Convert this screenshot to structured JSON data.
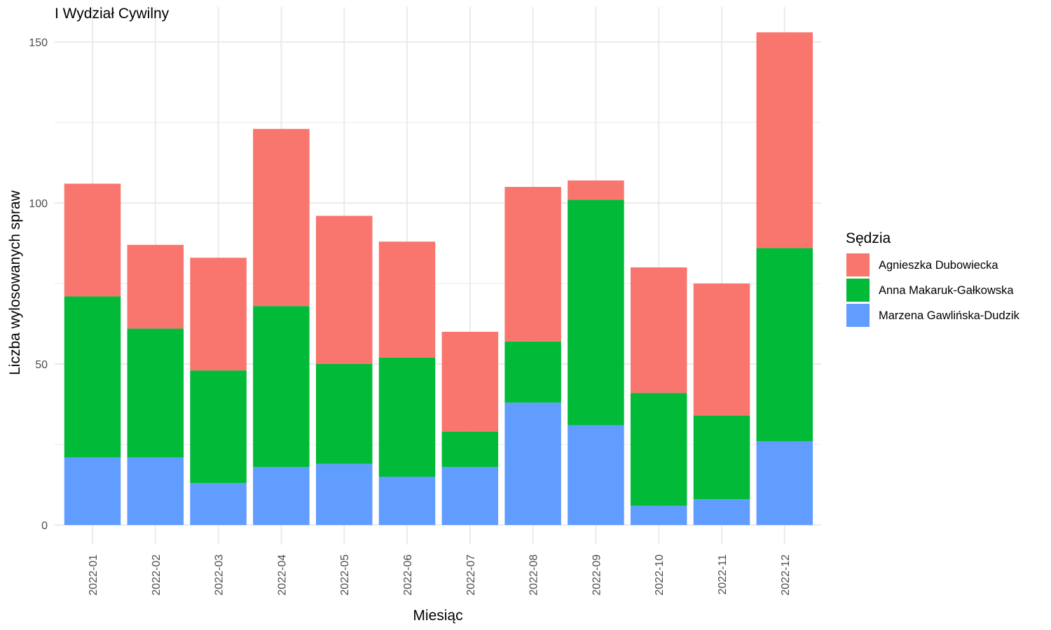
{
  "chart_data": {
    "type": "bar",
    "stacked": true,
    "title": "I Wydział Cywilny",
    "xlabel": "Miesiąc",
    "ylabel": "Liczba wylosowanych spraw",
    "ylim": [
      0,
      160
    ],
    "yticks": [
      0,
      50,
      100,
      150
    ],
    "grid": true,
    "legend_title": "Sędzia",
    "legend_position": "right",
    "categories": [
      "2022-01",
      "2022-02",
      "2022-03",
      "2022-04",
      "2022-05",
      "2022-06",
      "2022-07",
      "2022-08",
      "2022-09",
      "2022-10",
      "2022-11",
      "2022-12"
    ],
    "series": [
      {
        "name": "Marzena Gawlińska-Dudzik",
        "color": "#619CFF",
        "values": [
          21,
          21,
          13,
          18,
          19,
          15,
          18,
          38,
          31,
          6,
          8,
          26
        ]
      },
      {
        "name": "Anna Makaruk-Gałkowska",
        "color": "#00BA38",
        "values": [
          50,
          40,
          35,
          50,
          31,
          37,
          11,
          19,
          70,
          35,
          26,
          60
        ]
      },
      {
        "name": "Agnieszka Dubowiecka",
        "color": "#F8766D",
        "values": [
          35,
          26,
          35,
          55,
          46,
          36,
          31,
          48,
          6,
          39,
          41,
          67
        ]
      }
    ],
    "legend_order": [
      "Agnieszka Dubowiecka",
      "Anna Makaruk-Gałkowska",
      "Marzena Gawlińska-Dudzik"
    ],
    "colors": {
      "grid": "#EBEBEB",
      "tick_text": "#4D4D4D",
      "background": "#FFFFFF"
    }
  }
}
